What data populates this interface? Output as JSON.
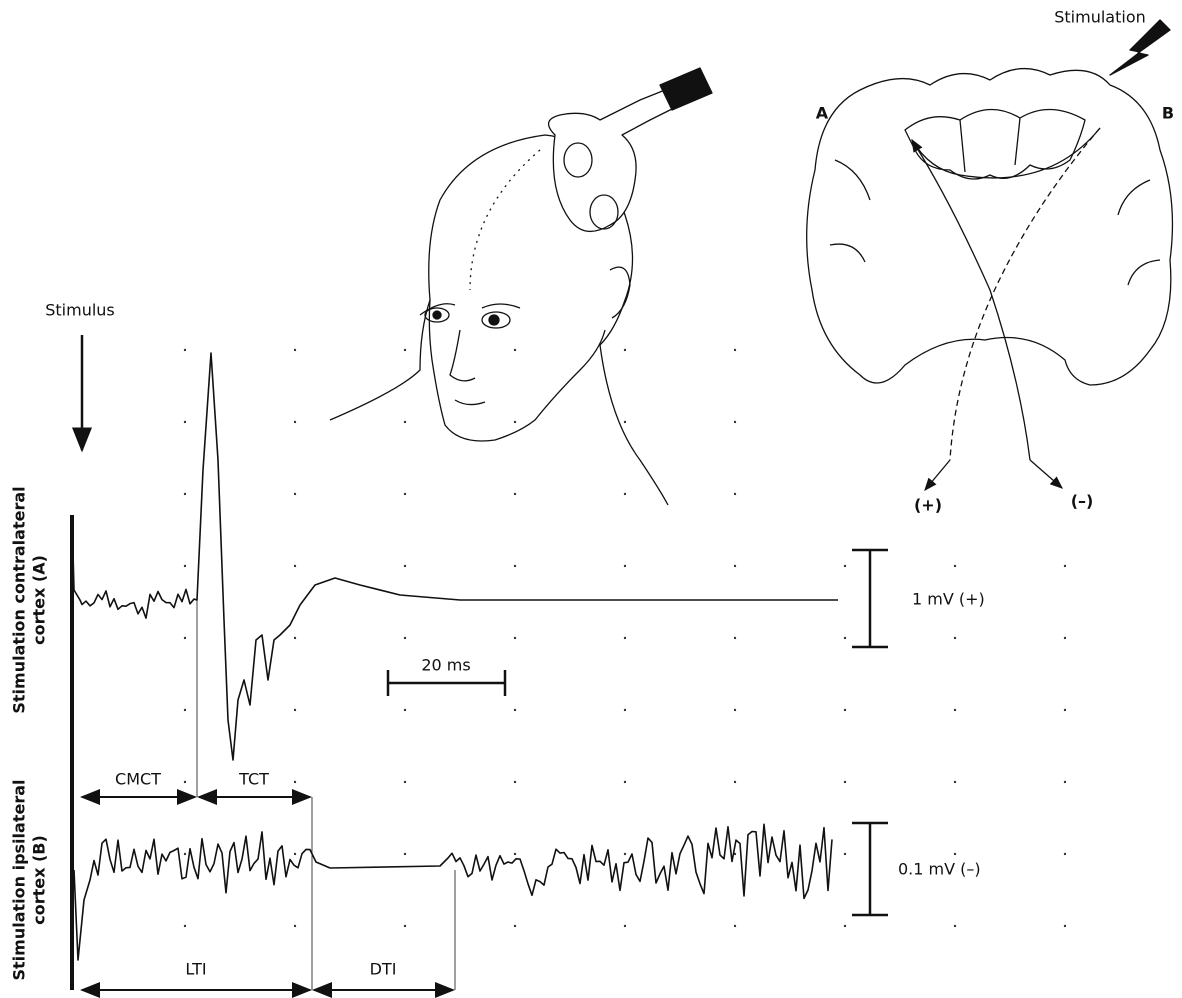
{
  "labels": {
    "stimulation": "Stimulation",
    "brain_left": "A",
    "brain_right": "B",
    "stimulus": "Stimulus",
    "plus": "(+)",
    "minus": "(–)"
  },
  "scales": {
    "amp_a": "1 mV (+)",
    "time": "20 ms",
    "amp_b": "0.1 mV (–)"
  },
  "intervals": {
    "cmct": "CMCT",
    "tct": "TCT",
    "lti": "LTI",
    "dti": "DTI"
  },
  "axis_labels": {
    "trace_a": [
      "Stimulation contralateral",
      "cortex (A)"
    ],
    "trace_b": [
      "Stimulation ipsilateral",
      "cortex (B)"
    ]
  }
}
